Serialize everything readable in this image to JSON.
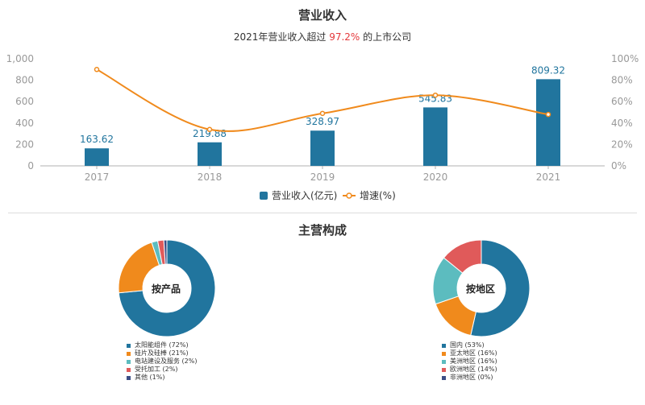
{
  "title": "营业收入",
  "subtitle": {
    "prefix": "2021年营业收入超过",
    "highlight": "97.2%",
    "suffix": "的上市公司"
  },
  "colors": {
    "bar": "#21759e",
    "line": "#f08a1c",
    "axis_text": "#999999",
    "highlight": "#e4393c"
  },
  "chart_data": [
    {
      "type": "bar",
      "categories": [
        "2017",
        "2018",
        "2019",
        "2020",
        "2021"
      ],
      "series": [
        {
          "name": "营业收入(亿元)",
          "type": "bar",
          "axis": "left",
          "values": [
            163.62,
            219.88,
            328.97,
            545.83,
            809.32
          ]
        },
        {
          "name": "增速(%)",
          "type": "line",
          "smooth": true,
          "axis": "right",
          "values": [
            90,
            34,
            49,
            66,
            48
          ]
        }
      ],
      "y_left": {
        "ticks": [
          "0",
          "200",
          "400",
          "600",
          "800",
          "1,000"
        ],
        "ylim": [
          0,
          1000
        ]
      },
      "y_right": {
        "ticks": [
          "0%",
          "20%",
          "40%",
          "60%",
          "80%",
          "100%"
        ],
        "ylim": [
          0,
          100
        ]
      },
      "legend_position": "bottom-center",
      "grid": false
    },
    {
      "type": "pie",
      "label": "按产品",
      "slices": [
        {
          "name": "太阳能组件",
          "pct": 72,
          "legend": "太阳能组件 (72%)",
          "color": "#21759e"
        },
        {
          "name": "硅片及硅棒",
          "pct": 21,
          "legend": "硅片及硅棒 (21%)",
          "color": "#f08a1c"
        },
        {
          "name": "电站建设及服务",
          "pct": 2,
          "legend": "电站建设及服务 (2%)",
          "color": "#5cbcbf"
        },
        {
          "name": "受托加工",
          "pct": 2,
          "legend": "受托加工 (2%)",
          "color": "#e05a5a"
        },
        {
          "name": "其他",
          "pct": 1,
          "legend": "其他 (1%)",
          "color": "#3c4e86"
        }
      ]
    },
    {
      "type": "pie",
      "label": "按地区",
      "slices": [
        {
          "name": "国内",
          "pct": 53,
          "legend": "国内 (53%)",
          "color": "#21759e"
        },
        {
          "name": "亚太地区",
          "pct": 16,
          "legend": "亚太地区 (16%)",
          "color": "#f08a1c"
        },
        {
          "name": "美洲地区",
          "pct": 16,
          "legend": "美洲地区 (16%)",
          "color": "#5cbcbf"
        },
        {
          "name": "欧洲地区",
          "pct": 14,
          "legend": "欧洲地区 (14%)",
          "color": "#e05a5a"
        },
        {
          "name": "非洲地区",
          "pct": 0,
          "legend": "非洲地区 (0%)",
          "color": "#3c4e86"
        }
      ]
    }
  ],
  "section2_title": "主营构成"
}
